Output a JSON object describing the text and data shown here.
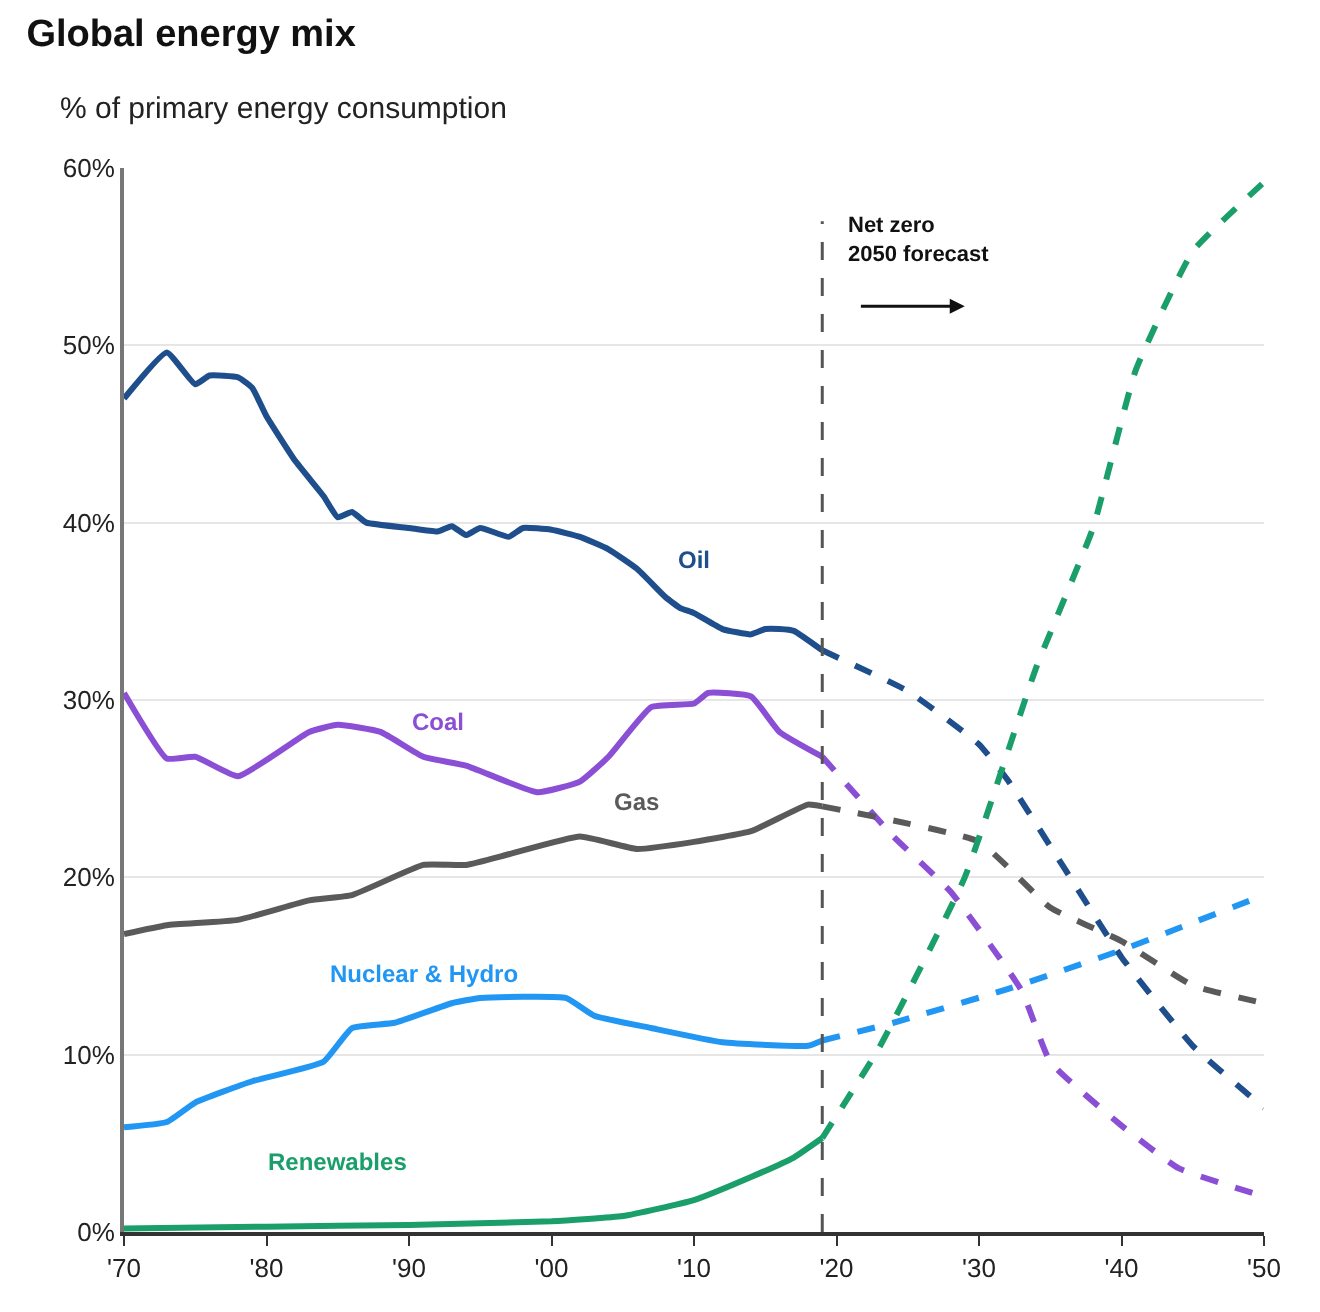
{
  "chart_data": {
    "type": "line",
    "title": "Global energy mix",
    "subtitle": "% of primary energy consumption",
    "xlim": [
      1970,
      2050
    ],
    "xticks": [
      {
        "value": 1970,
        "label": "'70"
      },
      {
        "value": 1980,
        "label": "'80"
      },
      {
        "value": 1990,
        "label": "'90"
      },
      {
        "value": 2000,
        "label": "'00"
      },
      {
        "value": 2010,
        "label": "'10"
      },
      {
        "value": 2020,
        "label": "'20"
      },
      {
        "value": 2030,
        "label": "'30"
      },
      {
        "value": 2040,
        "label": "'40"
      },
      {
        "value": 2050,
        "label": "'50"
      }
    ],
    "ylim": [
      0,
      60
    ],
    "yticks": [
      {
        "value": 0,
        "label": "0%"
      },
      {
        "value": 10,
        "label": "10%"
      },
      {
        "value": 20,
        "label": "20%"
      },
      {
        "value": 30,
        "label": "30%"
      },
      {
        "value": 40,
        "label": "40%"
      },
      {
        "value": 50,
        "label": "50%"
      },
      {
        "value": 60,
        "label": "60%"
      }
    ],
    "grid": "y",
    "legend": false,
    "marker": "none",
    "line_style": "solid",
    "ref_lines": [
      {
        "axis": "x",
        "value": 2019,
        "label": "Net zero\n2050 forecast",
        "color": "#555555",
        "line_style": "dashed"
      }
    ],
    "series": [
      {
        "name": "Oil",
        "color": "#1f4e8c",
        "x": [
          1970,
          1973,
          1975,
          1976,
          1978,
          1979,
          1980,
          1982,
          1984,
          1985,
          1986,
          1987,
          1990,
          1992,
          1993,
          1994,
          1995,
          1997,
          1998,
          2000,
          2002,
          2004,
          2006,
          2008,
          2009,
          2010,
          2012,
          2014,
          2015,
          2016,
          2017,
          2019
        ],
        "values": [
          47,
          49.6,
          47.8,
          48.3,
          48.2,
          47.6,
          46,
          43.5,
          41.5,
          40.3,
          40.6,
          40,
          39.7,
          39.5,
          39.8,
          39.3,
          39.7,
          39.2,
          39.7,
          39.6,
          39.2,
          38.5,
          37.4,
          35.8,
          35.2,
          34.9,
          34,
          33.7,
          34,
          34,
          33.9,
          32.8
        ]
      },
      {
        "name": "Coal",
        "color": "#8b4fd6",
        "x": [
          1970,
          1973,
          1975,
          1978,
          1983,
          1985,
          1988,
          1991,
          1994,
          1999,
          2002,
          2004,
          2007,
          2010,
          2011,
          2014,
          2016,
          2019
        ],
        "values": [
          30.4,
          26.7,
          26.8,
          25.7,
          28.2,
          28.6,
          28.2,
          26.8,
          26.3,
          24.8,
          25.4,
          26.8,
          29.6,
          29.8,
          30.4,
          30.2,
          28.2,
          26.8
        ]
      },
      {
        "name": "Gas",
        "color": "#5a5a5a",
        "x": [
          1970,
          1973,
          1978,
          1983,
          1986,
          1991,
          1994,
          1997,
          2002,
          2006,
          2010,
          2014,
          2018,
          2019
        ],
        "values": [
          16.8,
          17.3,
          17.6,
          18.7,
          19,
          20.7,
          20.7,
          21.3,
          22.3,
          21.6,
          22,
          22.6,
          24.1,
          24
        ]
      },
      {
        "name": "Nuclear & Hydro",
        "color": "#2196f3",
        "x": [
          1970,
          1973,
          1975,
          1979,
          1984,
          1986,
          1989,
          1993,
          1995,
          2001,
          2003,
          2007,
          2012,
          2018,
          2019
        ],
        "values": [
          5.9,
          6.2,
          7.3,
          8.5,
          9.6,
          11.5,
          11.8,
          12.9,
          13.2,
          13.2,
          12.2,
          11.5,
          10.7,
          10.5,
          10.8
        ]
      },
      {
        "name": "Renewables",
        "color": "#1a9e6a",
        "x": [
          1970,
          1980,
          1990,
          2000,
          2005,
          2010,
          2014,
          2017,
          2019
        ],
        "values": [
          0.2,
          0.3,
          0.4,
          0.6,
          0.9,
          1.8,
          3.1,
          4.2,
          5.3
        ]
      },
      {
        "color": "#1f4e8c",
        "line_style": "dashed",
        "x": [
          2019,
          2025,
          2030,
          2032,
          2036,
          2040,
          2045,
          2050
        ],
        "values": [
          32.8,
          30.5,
          27.5,
          25.5,
          20.5,
          15.5,
          10.5,
          7
        ]
      },
      {
        "color": "#8b4fd6",
        "line_style": "dashed",
        "x": [
          2019,
          2024,
          2028,
          2033,
          2035,
          2040,
          2044,
          2050
        ],
        "values": [
          26.8,
          22.3,
          19.2,
          13.6,
          9.6,
          6,
          3.6,
          2
        ]
      },
      {
        "color": "#5a5a5a",
        "line_style": "dashed",
        "x": [
          2019,
          2030,
          2035,
          2040,
          2045,
          2050
        ],
        "values": [
          24,
          22,
          18.3,
          16.4,
          13.9,
          12.9
        ]
      },
      {
        "color": "#2196f3",
        "line_style": "dashed",
        "x": [
          2019,
          2024,
          2032,
          2040,
          2050
        ],
        "values": [
          10.8,
          11.8,
          13.7,
          15.9,
          19
        ]
      },
      {
        "color": "#1a9e6a",
        "line_style": "dashed",
        "x": [
          2019,
          2023,
          2029,
          2034,
          2038,
          2041,
          2045,
          2050
        ],
        "values": [
          5.3,
          10.4,
          20,
          31.8,
          39.7,
          48.6,
          55.3,
          59.2
        ]
      }
    ]
  }
}
